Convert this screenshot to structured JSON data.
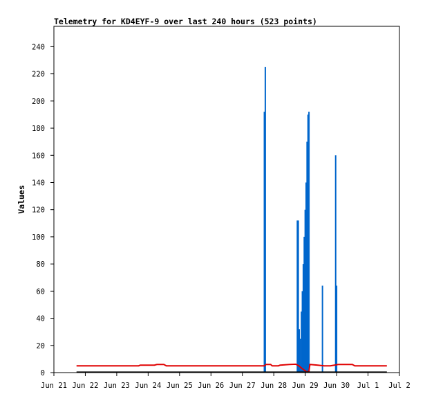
{
  "chart_data": {
    "type": "line",
    "title": "Telemetry for KD4EYF-9 over last 240 hours (523 points)",
    "xlabel": "",
    "ylabel": "Values",
    "ylim": [
      0,
      255
    ],
    "xlim": [
      "Jun 21",
      "Jul 2"
    ],
    "grid": false,
    "legend": "none",
    "x_ticks": [
      "Jun 21",
      "Jun 22",
      "Jun 23",
      "Jun 24",
      "Jun 25",
      "Jun 26",
      "Jun 27",
      "Jun 28",
      "Jun 29",
      "Jun 30",
      "Jul 1",
      "Jul 2"
    ],
    "y_ticks": [
      0,
      20,
      40,
      60,
      80,
      100,
      120,
      140,
      160,
      180,
      200,
      220,
      240
    ],
    "colors": {
      "series_blue": "#0066cc",
      "series_red": "#e00000",
      "series_black": "#000000"
    },
    "series": [
      {
        "color": "#0066cc",
        "style": "spikes",
        "points": [
          {
            "x": 27.7,
            "y": 192
          },
          {
            "x": 27.73,
            "y": 225
          },
          {
            "x": 28.75,
            "y": 112
          },
          {
            "x": 28.78,
            "y": 112
          },
          {
            "x": 28.81,
            "y": 32
          },
          {
            "x": 28.84,
            "y": 25
          },
          {
            "x": 28.88,
            "y": 45
          },
          {
            "x": 28.91,
            "y": 60
          },
          {
            "x": 28.94,
            "y": 80
          },
          {
            "x": 28.97,
            "y": 100
          },
          {
            "x": 29.0,
            "y": 120
          },
          {
            "x": 29.03,
            "y": 140
          },
          {
            "x": 29.06,
            "y": 170
          },
          {
            "x": 29.09,
            "y": 190
          },
          {
            "x": 29.12,
            "y": 192
          },
          {
            "x": 29.55,
            "y": 64
          },
          {
            "x": 29.97,
            "y": 160
          },
          {
            "x": 30.0,
            "y": 64
          }
        ]
      },
      {
        "color": "#e00000",
        "style": "line",
        "points": [
          {
            "x": 21.72,
            "y": 5
          },
          {
            "x": 23.7,
            "y": 5
          },
          {
            "x": 23.75,
            "y": 5.5
          },
          {
            "x": 24.2,
            "y": 5.5
          },
          {
            "x": 24.28,
            "y": 6
          },
          {
            "x": 24.5,
            "y": 6
          },
          {
            "x": 24.58,
            "y": 5
          },
          {
            "x": 27.7,
            "y": 5
          },
          {
            "x": 27.75,
            "y": 6
          },
          {
            "x": 27.9,
            "y": 6
          },
          {
            "x": 27.95,
            "y": 5
          },
          {
            "x": 28.15,
            "y": 5
          },
          {
            "x": 28.2,
            "y": 5.5
          },
          {
            "x": 28.5,
            "y": 6
          },
          {
            "x": 28.7,
            "y": 6.2
          },
          {
            "x": 28.8,
            "y": 5
          },
          {
            "x": 28.9,
            "y": 3
          },
          {
            "x": 29.05,
            "y": 0.5
          },
          {
            "x": 29.12,
            "y": 1
          },
          {
            "x": 29.15,
            "y": 6
          },
          {
            "x": 29.4,
            "y": 5.5
          },
          {
            "x": 29.6,
            "y": 5
          },
          {
            "x": 29.8,
            "y": 5
          },
          {
            "x": 30.05,
            "y": 6
          },
          {
            "x": 30.5,
            "y": 6
          },
          {
            "x": 30.58,
            "y": 5
          },
          {
            "x": 31.6,
            "y": 5
          }
        ]
      },
      {
        "color": "#000000",
        "style": "line",
        "points": [
          {
            "x": 21.72,
            "y": 0.3
          },
          {
            "x": 31.6,
            "y": 0.3
          }
        ]
      }
    ]
  }
}
